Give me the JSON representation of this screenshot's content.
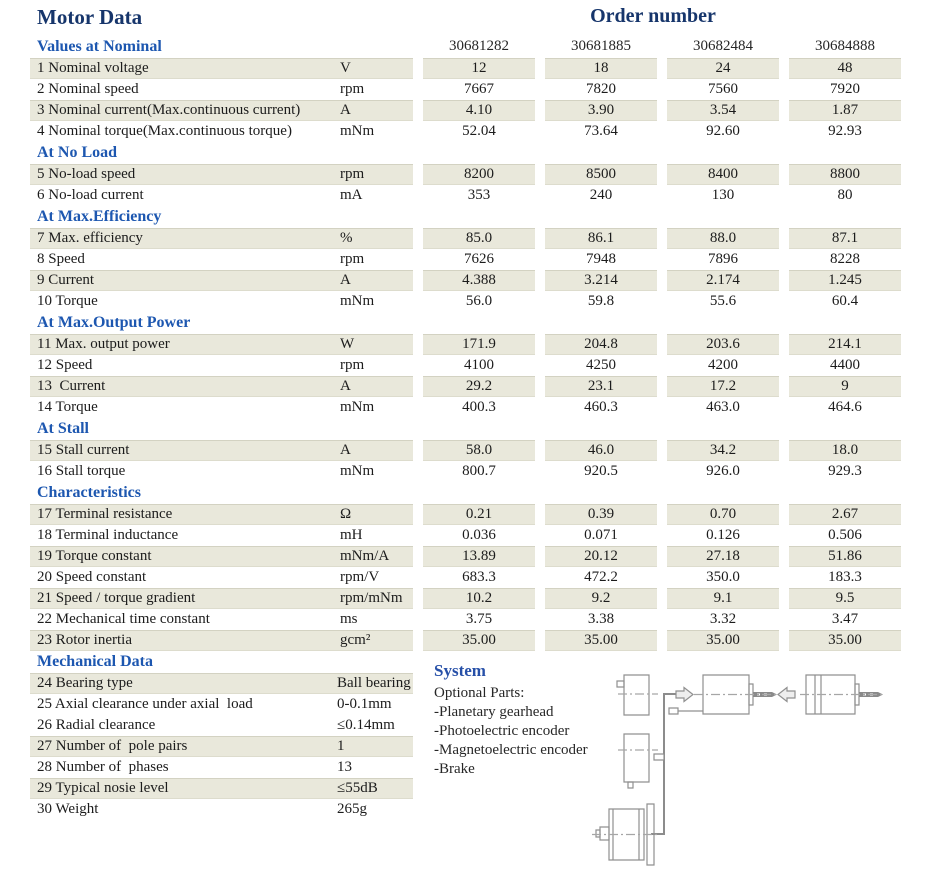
{
  "title": "Motor Data",
  "order_number_label": "Order number",
  "order_numbers": [
    "30681282",
    "30681885",
    "30682484",
    "30684888"
  ],
  "sections": [
    {
      "header": "Values at Nominal",
      "rows": [
        {
          "label": "1 Nominal voltage",
          "unit": "V",
          "values": [
            "12",
            "18",
            "24",
            "48"
          ],
          "shaded": true
        },
        {
          "label": "2 Nominal speed",
          "unit": "rpm",
          "values": [
            "7667",
            "7820",
            "7560",
            "7920"
          ],
          "shaded": false
        },
        {
          "label": "3 Nominal current(Max.continuous current)",
          "unit": "A",
          "values": [
            "4.10",
            "3.90",
            "3.54",
            "1.87"
          ],
          "shaded": true
        },
        {
          "label": "4 Nominal torque(Max.continuous torque)",
          "unit": "mNm",
          "values": [
            "52.04",
            "73.64",
            "92.60",
            "92.93"
          ],
          "shaded": false
        }
      ]
    },
    {
      "header": "At No Load",
      "rows": [
        {
          "label": "5 No-load speed",
          "unit": "rpm",
          "values": [
            "8200",
            "8500",
            "8400",
            "8800"
          ],
          "shaded": true
        },
        {
          "label": "6 No-load current",
          "unit": "mA",
          "values": [
            "353",
            "240",
            "130",
            "80"
          ],
          "shaded": false
        }
      ]
    },
    {
      "header": "At Max.Efficiency",
      "rows": [
        {
          "label": "7 Max. efficiency",
          "unit": "%",
          "values": [
            "85.0",
            "86.1",
            "88.0",
            "87.1"
          ],
          "shaded": true
        },
        {
          "label": "8 Speed",
          "unit": "rpm",
          "values": [
            "7626",
            "7948",
            "7896",
            "8228"
          ],
          "shaded": false
        },
        {
          "label": "9 Current",
          "unit": "A",
          "values": [
            "4.388",
            "3.214",
            "2.174",
            "1.245"
          ],
          "shaded": true
        },
        {
          "label": "10 Torque",
          "unit": "mNm",
          "values": [
            "56.0",
            "59.8",
            "55.6",
            "60.4"
          ],
          "shaded": false
        }
      ]
    },
    {
      "header": "At Max.Output Power",
      "rows": [
        {
          "label": "11 Max. output power",
          "unit": "W",
          "values": [
            "171.9",
            "204.8",
            "203.6",
            "214.1"
          ],
          "shaded": true
        },
        {
          "label": "12 Speed",
          "unit": "rpm",
          "values": [
            "4100",
            "4250",
            "4200",
            "4400"
          ],
          "shaded": false
        },
        {
          "label": "13  Current",
          "unit": "A",
          "values": [
            "29.2",
            "23.1",
            "17.2",
            "9"
          ],
          "shaded": true
        },
        {
          "label": "14 Torque",
          "unit": "mNm",
          "values": [
            "400.3",
            "460.3",
            "463.0",
            "464.6"
          ],
          "shaded": false
        }
      ]
    },
    {
      "header": "At Stall",
      "rows": [
        {
          "label": "15 Stall current",
          "unit": "A",
          "values": [
            "58.0",
            "46.0",
            "34.2",
            "18.0"
          ],
          "shaded": true
        },
        {
          "label": "16 Stall torque",
          "unit": "mNm",
          "values": [
            "800.7",
            "920.5",
            "926.0",
            "929.3"
          ],
          "shaded": false
        }
      ]
    },
    {
      "header": "Characteristics",
      "rows": [
        {
          "label": "17 Terminal resistance",
          "unit": "Ω",
          "values": [
            "0.21",
            "0.39",
            "0.70",
            "2.67"
          ],
          "shaded": true
        },
        {
          "label": "18 Terminal inductance",
          "unit": "mH",
          "values": [
            "0.036",
            "0.071",
            "0.126",
            "0.506"
          ],
          "shaded": false
        },
        {
          "label": "19 Torque constant",
          "unit": "mNm/A",
          "values": [
            "13.89",
            "20.12",
            "27.18",
            "51.86"
          ],
          "shaded": true
        },
        {
          "label": "20 Speed constant",
          "unit": "rpm/V",
          "values": [
            "683.3",
            "472.2",
            "350.0",
            "183.3"
          ],
          "shaded": false
        },
        {
          "label": "21 Speed / torque gradient",
          "unit": "rpm/mNm",
          "values": [
            "10.2",
            "9.2",
            "9.1",
            "9.5"
          ],
          "shaded": true
        },
        {
          "label": "22 Mechanical time constant",
          "unit": "ms",
          "values": [
            "3.75",
            "3.38",
            "3.32",
            "3.47"
          ],
          "shaded": false
        },
        {
          "label": "23 Rotor inertia",
          "unit": "gcm²",
          "values": [
            "35.00",
            "35.00",
            "35.00",
            "35.00"
          ],
          "shaded": true
        }
      ]
    }
  ],
  "mechanical": {
    "header": "Mechanical Data",
    "rows": [
      {
        "label": "24 Bearing type",
        "value": "Ball bearing",
        "shaded": true
      },
      {
        "label": "25 Axial clearance under axial  load",
        "value": "0-0.1mm",
        "shaded": false
      },
      {
        "label": "26 Radial clearance",
        "value": "≤0.14mm",
        "shaded": false
      },
      {
        "label": "27 Number of  pole pairs",
        "value": "1",
        "shaded": true
      },
      {
        "label": "28 Number of  phases",
        "value": "13",
        "shaded": false
      },
      {
        "label": "29 Typical nosie level",
        "value": "≤55dB",
        "shaded": true
      },
      {
        "label": "30 Weight",
        "value": "265g",
        "shaded": false
      }
    ]
  },
  "system": {
    "header": "System",
    "subtitle": "Optional Parts:",
    "items": [
      "-Planetary gearhead",
      "-Photoelectric encoder",
      "-Magnetoelectric encoder",
      "-Brake"
    ]
  },
  "colors": {
    "title_navy": "#16356b",
    "section_blue": "#1d57b0",
    "row_shade": "#e9e8db",
    "diagram_gray": "#909090"
  }
}
